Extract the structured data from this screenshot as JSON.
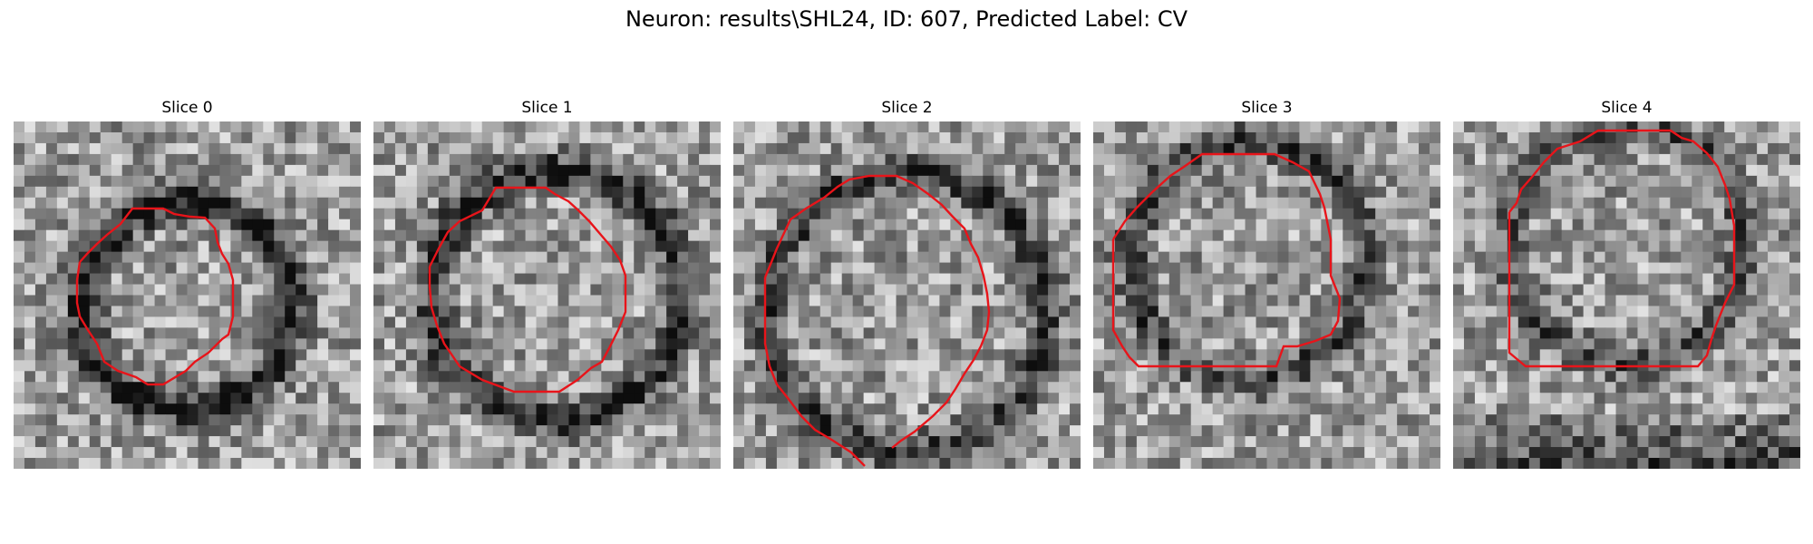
{
  "figure": {
    "title": "Neuron: results\\SHL24, ID: 607, Predicted Label: CV"
  },
  "panels": [
    {
      "title": "Slice 0"
    },
    {
      "title": "Slice 1"
    },
    {
      "title": "Slice 2"
    },
    {
      "title": "Slice 3"
    },
    {
      "title": "Slice 4"
    }
  ],
  "colors": {
    "contour": "#e8141a",
    "background": "#ffffff",
    "colormap": "grayscale"
  }
}
